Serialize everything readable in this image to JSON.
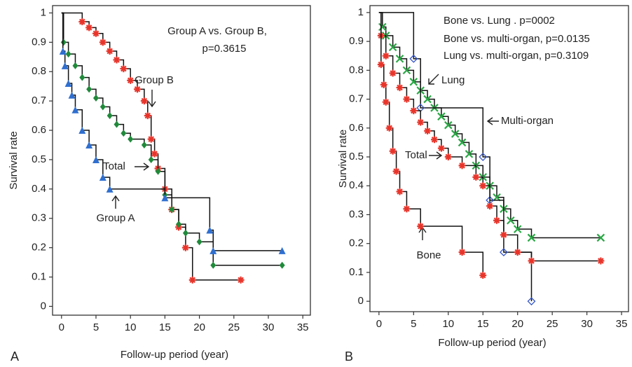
{
  "chart_data": [
    {
      "type": "line",
      "panel_label": "A",
      "x_label": "Follow-up period (year)",
      "y_label": "Survival rate",
      "xlim": [
        -1.3,
        36.1
      ],
      "ylim": [
        -0.03,
        1.025
      ],
      "xticks": [
        0,
        5,
        10,
        15,
        20,
        25,
        30,
        35
      ],
      "yticks": [
        0,
        0.1,
        0.2,
        0.3,
        0.4,
        0.5,
        0.6,
        0.7,
        0.8,
        0.9,
        1
      ],
      "annotations": [
        "Group A   vs. Group B,",
        "p=0.3615"
      ],
      "series": [
        {
          "name": "Group B",
          "color": "#e8352b",
          "marker": "star",
          "x": [
            0,
            3,
            4,
            5,
            6,
            7,
            8,
            9,
            10,
            11,
            12,
            12.5,
            13,
            13.5,
            14,
            15,
            16,
            17,
            18,
            19,
            26
          ],
          "values": [
            1,
            0.97,
            0.95,
            0.93,
            0.9,
            0.87,
            0.84,
            0.81,
            0.77,
            0.74,
            0.7,
            0.65,
            0.57,
            0.52,
            0.47,
            0.4,
            0.33,
            0.27,
            0.2,
            0.09,
            0.09
          ]
        },
        {
          "name": "Total",
          "color": "#1f8a3a",
          "marker": "diamond",
          "x": [
            0,
            0.3,
            1,
            2,
            3,
            4,
            5,
            6,
            7,
            8,
            9,
            10,
            12,
            13,
            14,
            15,
            16,
            17,
            18,
            20,
            22,
            32
          ],
          "values": [
            1,
            0.9,
            0.86,
            0.82,
            0.78,
            0.74,
            0.71,
            0.68,
            0.65,
            0.62,
            0.59,
            0.57,
            0.55,
            0.5,
            0.46,
            0.38,
            0.33,
            0.28,
            0.25,
            0.22,
            0.14,
            0.14
          ]
        },
        {
          "name": "Group A",
          "color": "#2f6fd0",
          "marker": "triangle",
          "x": [
            0,
            0.2,
            0.5,
            1,
            1.5,
            2,
            3,
            4,
            5,
            6,
            7,
            15,
            21.5,
            22,
            32
          ],
          "values": [
            1,
            0.87,
            0.82,
            0.76,
            0.72,
            0.67,
            0.6,
            0.55,
            0.5,
            0.44,
            0.4,
            0.37,
            0.26,
            0.19,
            0.19
          ]
        }
      ]
    },
    {
      "type": "line",
      "panel_label": "B",
      "x_label": "Follow-up period (year)",
      "y_label": "Survival rate",
      "xlim": [
        -1.3,
        36
      ],
      "ylim": [
        -0.036,
        1.024
      ],
      "xticks": [
        0,
        5,
        10,
        15,
        20,
        25,
        30,
        35
      ],
      "yticks": [
        0,
        0.1,
        0.2,
        0.3,
        0.4,
        0.5,
        0.6,
        0.7,
        0.8,
        0.9,
        1
      ],
      "annotations": [
        "Bone vs. Lung . p=0002",
        "Bone vs. multi-organ, p=0.0135",
        "Lung vs. multi-organ, p=0.3109"
      ],
      "series": [
        {
          "name": "Lung",
          "color": "#2aa845",
          "marker": "x",
          "x": [
            0,
            0.5,
            1,
            2,
            3,
            4,
            5,
            6,
            7,
            8,
            9,
            10,
            11,
            12,
            13,
            14,
            15,
            16,
            17,
            18,
            19,
            20,
            22,
            32
          ],
          "values": [
            1,
            0.95,
            0.92,
            0.88,
            0.84,
            0.8,
            0.76,
            0.73,
            0.7,
            0.67,
            0.64,
            0.61,
            0.58,
            0.55,
            0.51,
            0.47,
            0.43,
            0.4,
            0.36,
            0.32,
            0.28,
            0.25,
            0.22,
            0.22
          ]
        },
        {
          "name": "Multi-organ",
          "color": "#3556c8",
          "marker": "diamond-open",
          "x": [
            0,
            5,
            6,
            15,
            16,
            18,
            22
          ],
          "values": [
            1,
            0.84,
            0.67,
            0.5,
            0.35,
            0.17,
            0
          ]
        },
        {
          "name": "Total",
          "color": "#e8352b",
          "marker": "star",
          "x": [
            0,
            0.3,
            1,
            2,
            3,
            4,
            5,
            6,
            7,
            8,
            9,
            10,
            12,
            14,
            15,
            16,
            17,
            18,
            20,
            22,
            32
          ],
          "values": [
            1,
            0.92,
            0.85,
            0.79,
            0.74,
            0.7,
            0.66,
            0.62,
            0.59,
            0.56,
            0.53,
            0.5,
            0.47,
            0.43,
            0.4,
            0.33,
            0.28,
            0.23,
            0.17,
            0.14,
            0.14
          ]
        },
        {
          "name": "Bone",
          "color": "#e8352b",
          "marker": "star",
          "x": [
            0,
            0.3,
            0.7,
            1,
            1.5,
            2,
            2.5,
            3,
            4,
            6,
            12,
            15
          ],
          "values": [
            1,
            0.82,
            0.75,
            0.69,
            0.6,
            0.52,
            0.45,
            0.38,
            0.32,
            0.26,
            0.17,
            0.09
          ]
        }
      ]
    }
  ]
}
